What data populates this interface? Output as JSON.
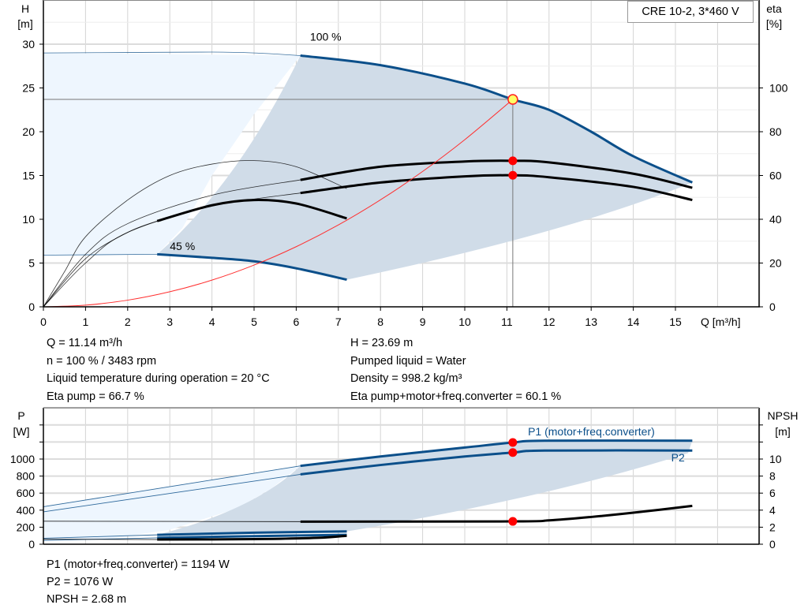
{
  "title_box": "CRE 10-2, 3*460 V",
  "colors": {
    "head_curve": "#0b4f8a",
    "efficiency": "#000000",
    "system_curve": "#ff3030",
    "fill_light": "#eef6fe",
    "fill_dark": "#d0dce8",
    "marker": "#ff0000",
    "operating_point": "#ffff66"
  },
  "info_top": {
    "left": [
      "Q = 11.14 m³/h",
      "n = 100 % / 3483 rpm",
      "Liquid temperature during operation = 20 °C",
      "Eta pump = 66.7 %"
    ],
    "right": [
      "H = 23.69 m",
      "Pumped liquid = Water",
      "Density = 998.2 kg/m³",
      "Eta pump+motor+freq.converter = 60.1 %"
    ]
  },
  "info_bottom": [
    "P1 (motor+freq.converter) = 1194 W",
    "P2 = 1076 W",
    "NPSH = 2.68 m"
  ],
  "chart_data": [
    {
      "type": "line",
      "xlabel": "Q [m³/h]",
      "ylabel": "H\n[m]",
      "ylabel_line1": "H",
      "ylabel_line2": "[m]",
      "y2label_line1": "eta",
      "y2label_line2": "[%]",
      "xlim": [
        0,
        17
      ],
      "ylim": [
        0,
        32.5
      ],
      "y2lim": [
        0,
        130
      ],
      "xticks": [
        0,
        1,
        2,
        3,
        4,
        5,
        6,
        7,
        8,
        9,
        10,
        11,
        12,
        13,
        14,
        15
      ],
      "yticks": [
        0,
        5,
        10,
        15,
        20,
        25,
        30
      ],
      "y2ticks": [
        0,
        20,
        40,
        60,
        80,
        100
      ],
      "grid": true,
      "annotations": [
        {
          "text": "100 %",
          "x": 6.7,
          "y": 30.4
        },
        {
          "text": "45 %",
          "x": 3.3,
          "y": 6.5
        }
      ],
      "operating_point": {
        "Q": 11.14,
        "H": 23.69
      },
      "markers_eta": [
        {
          "Q": 11.14,
          "eta": 66.7
        },
        {
          "Q": 11.14,
          "eta": 60.1
        }
      ],
      "series": [
        {
          "id": "head-100",
          "axis": "H",
          "color": "#0b4f8a",
          "thin": [
            [
              0,
              29.0
            ],
            [
              2,
              29.05
            ],
            [
              4,
              29.1
            ],
            [
              5,
              29.0
            ],
            [
              6.1,
              28.7
            ]
          ],
          "thick": [
            [
              6.1,
              28.7
            ],
            [
              8,
              27.6
            ],
            [
              10,
              25.5
            ],
            [
              11.14,
              23.69
            ],
            [
              12,
              22.5
            ],
            [
              13,
              20.0
            ],
            [
              14,
              17.2
            ],
            [
              15.4,
              14.2
            ]
          ]
        },
        {
          "id": "head-45",
          "axis": "H",
          "color": "#0b4f8a",
          "thin": [
            [
              0,
              5.9
            ],
            [
              2.7,
              6.0
            ]
          ],
          "thick": [
            [
              2.7,
              6.0
            ],
            [
              4,
              5.6
            ],
            [
              5,
              5.2
            ],
            [
              6,
              4.4
            ],
            [
              7.2,
              3.1
            ]
          ]
        },
        {
          "id": "eta-pump-100",
          "axis": "eta",
          "color": "#000000",
          "thin": [
            [
              0,
              0
            ],
            [
              1,
              24
            ],
            [
              2,
              38
            ],
            [
              4,
              51
            ],
            [
              6.1,
              58
            ]
          ],
          "thick": [
            [
              6.1,
              58
            ],
            [
              8,
              64
            ],
            [
              10,
              66.4
            ],
            [
              11.14,
              66.7
            ],
            [
              12,
              66
            ],
            [
              14,
              60.8
            ],
            [
              15.4,
              54.4
            ]
          ]
        },
        {
          "id": "eta-total-100",
          "axis": "eta",
          "color": "#000000",
          "thin": [
            [
              0,
              0
            ],
            [
              1,
              20
            ],
            [
              2,
              34
            ],
            [
              4,
              46
            ],
            [
              6.1,
              52
            ]
          ],
          "thick": [
            [
              6.1,
              52
            ],
            [
              8,
              56.8
            ],
            [
              10,
              59.6
            ],
            [
              11.14,
              60.1
            ],
            [
              12,
              59.2
            ],
            [
              14,
              54.8
            ],
            [
              15.4,
              48.8
            ]
          ]
        },
        {
          "id": "eta-45",
          "axis": "eta",
          "color": "#000000",
          "thin": [
            [
              0,
              0
            ],
            [
              1,
              22
            ],
            [
              2,
              34
            ],
            [
              2.7,
              39.2
            ]
          ],
          "thick": [
            [
              2.7,
              39.2
            ],
            [
              4,
              46.4
            ],
            [
              5,
              48.8
            ],
            [
              6,
              47.2
            ],
            [
              7.2,
              40.4
            ]
          ]
        },
        {
          "id": "eta-45-pump",
          "axis": "eta",
          "color": "#000000",
          "thin": [
            [
              0,
              0
            ],
            [
              0.5,
              16
            ],
            [
              1,
              32
            ],
            [
              2,
              48.8
            ],
            [
              3,
              60
            ],
            [
              4,
              65.2
            ],
            [
              5,
              66.8
            ],
            [
              6,
              64
            ],
            [
              7.2,
              54
            ]
          ],
          "thick": []
        },
        {
          "id": "system-curve",
          "axis": "H",
          "color": "#ff3030",
          "thin": [
            [
              0,
              0
            ],
            [
              1,
              0.19
            ],
            [
              2,
              0.76
            ],
            [
              3,
              1.72
            ],
            [
              4,
              3.05
            ],
            [
              5,
              4.77
            ],
            [
              6,
              6.87
            ],
            [
              7,
              9.35
            ],
            [
              8,
              12.22
            ],
            [
              9,
              15.46
            ],
            [
              10,
              19.09
            ],
            [
              11.14,
              23.69
            ]
          ],
          "thick": []
        }
      ]
    },
    {
      "type": "line",
      "ylabel_line1": "P",
      "ylabel_line2": "[W]",
      "y2label_line1": "NPSH",
      "y2label_line2": "[m]",
      "xlim": [
        0,
        17
      ],
      "ylim": [
        0,
        1600
      ],
      "y2lim": [
        0,
        16
      ],
      "yticks": [
        0,
        200,
        400,
        600,
        800,
        1000
      ],
      "y2ticks": [
        0,
        2,
        4,
        6,
        8,
        10
      ],
      "grid": true,
      "labels": [
        {
          "text": "P1 (motor+freq.converter)",
          "x": 11.5,
          "y": 1280
        },
        {
          "text": "P2",
          "x": 14.9,
          "y": 970
        }
      ],
      "markers": [
        {
          "Q": 11.14,
          "P": 1194
        },
        {
          "Q": 11.14,
          "P": 1076
        },
        {
          "Q": 11.14,
          "NPSH": 2.68
        }
      ],
      "series": [
        {
          "id": "p1-100",
          "axis": "P",
          "color": "#0b4f8a",
          "thin": [
            [
              0,
              440
            ],
            [
              6.1,
              920
            ]
          ],
          "thick": [
            [
              6.1,
              920
            ],
            [
              8,
              1030
            ],
            [
              10,
              1135
            ],
            [
              11.14,
              1194
            ],
            [
              11.9,
              1215
            ],
            [
              15.4,
              1215
            ]
          ]
        },
        {
          "id": "p2-100",
          "axis": "P",
          "color": "#0b4f8a",
          "thin": [
            [
              0,
              380
            ],
            [
              6.1,
              820
            ]
          ],
          "thick": [
            [
              6.1,
              820
            ],
            [
              8,
              930
            ],
            [
              10,
              1030
            ],
            [
              11.14,
              1076
            ],
            [
              11.9,
              1100
            ],
            [
              15.4,
              1100
            ]
          ]
        },
        {
          "id": "npsh-100",
          "axis": "NPSH",
          "color": "#000000",
          "thin": [
            [
              0,
              2.7
            ],
            [
              6.1,
              2.65
            ]
          ],
          "thick": [
            [
              6.1,
              2.65
            ],
            [
              11.14,
              2.68
            ],
            [
              12,
              2.8
            ],
            [
              13,
              3.2
            ],
            [
              14,
              3.7
            ],
            [
              15.4,
              4.5
            ]
          ]
        },
        {
          "id": "p1-45",
          "axis": "P",
          "color": "#0b4f8a",
          "thin": [
            [
              0,
              70
            ],
            [
              2.7,
              110
            ]
          ],
          "thick": [
            [
              2.7,
              110
            ],
            [
              5,
              135
            ],
            [
              7.2,
              150
            ]
          ]
        },
        {
          "id": "p2-45",
          "axis": "P",
          "color": "#0b4f8a",
          "thin": [
            [
              0,
              45
            ],
            [
              2.7,
              75
            ]
          ],
          "thick": [
            [
              2.7,
              75
            ],
            [
              5,
              95
            ],
            [
              7.2,
              110
            ]
          ]
        },
        {
          "id": "npsh-45",
          "axis": "NPSH",
          "color": "#000000",
          "thin": [
            [
              0,
              0.6
            ],
            [
              2.7,
              0.55
            ]
          ],
          "thick": [
            [
              2.7,
              0.55
            ],
            [
              5,
              0.6
            ],
            [
              6.5,
              0.75
            ],
            [
              7.2,
              1.0
            ]
          ]
        }
      ]
    }
  ]
}
